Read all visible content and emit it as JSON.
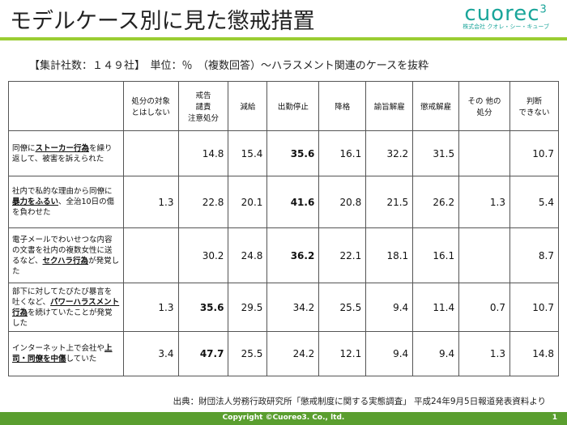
{
  "header": {
    "title": "モデルケース別に見た懲戒措置",
    "logo": "cuorec",
    "logo_sup": "3",
    "company": "株式会社 クオレ・シー・キューブ"
  },
  "subtitle": "【集計社数：１４９社】　単位：％　（複数回答）～ハラスメント関連のケースを抜粋",
  "table": {
    "columns": [
      "処分の対象\nとはしない",
      "戒告\n譴責\n注意処分",
      "減給",
      "出勤停止",
      "降格",
      "諭旨解雇",
      "懲戒解雇",
      "その 他の\n処分",
      "判断\nできない"
    ],
    "rows": [
      {
        "case_before": "同僚に",
        "case_emphasis": "ストーカー行為",
        "case_after": "を繰り返して、被害を訴えられた",
        "values": [
          null,
          14.8,
          15.4,
          35.6,
          16.1,
          32.2,
          31.5,
          null,
          10.7
        ],
        "bold": [
          3
        ]
      },
      {
        "case_before": "社内で私的な理由から同僚に",
        "case_emphasis": "暴力をふるい",
        "case_after": "、全治10日の傷を負わせた",
        "values": [
          1.3,
          22.8,
          20.1,
          41.6,
          20.8,
          21.5,
          26.2,
          1.3,
          5.4
        ],
        "bold": [
          3
        ]
      },
      {
        "case_before": "電子メールでわいせつな内容の文書を社内の複数女性に送るなど、",
        "case_emphasis": "セクハラ行為",
        "case_after": "が発覚した",
        "values": [
          null,
          30.2,
          24.8,
          36.2,
          22.1,
          18.1,
          16.1,
          null,
          8.7
        ],
        "bold": [
          3
        ]
      },
      {
        "case_before": "部下に対してたびたび暴言を吐くなど、",
        "case_emphasis": "パワーハラスメント行為",
        "case_after": "を続けていたことが発覚した",
        "values": [
          1.3,
          35.6,
          29.5,
          34.2,
          25.5,
          9.4,
          11.4,
          0.7,
          10.7
        ],
        "bold": [
          1
        ]
      },
      {
        "case_before": "インターネット上で会社や",
        "case_emphasis": "上司・同僚を中傷",
        "case_after": "していた",
        "values": [
          3.4,
          47.7,
          25.5,
          24.2,
          12.1,
          9.4,
          9.4,
          1.3,
          14.8
        ],
        "bold": [
          1
        ]
      }
    ]
  },
  "source": "出典：財団法人労務行政研究所「懲戒制度に関する実態調査」 平成24年9月5日報道発表資料より",
  "footer": {
    "copyright": "Copyright ©Cuoreo3. Co., ltd.",
    "page": "1"
  }
}
